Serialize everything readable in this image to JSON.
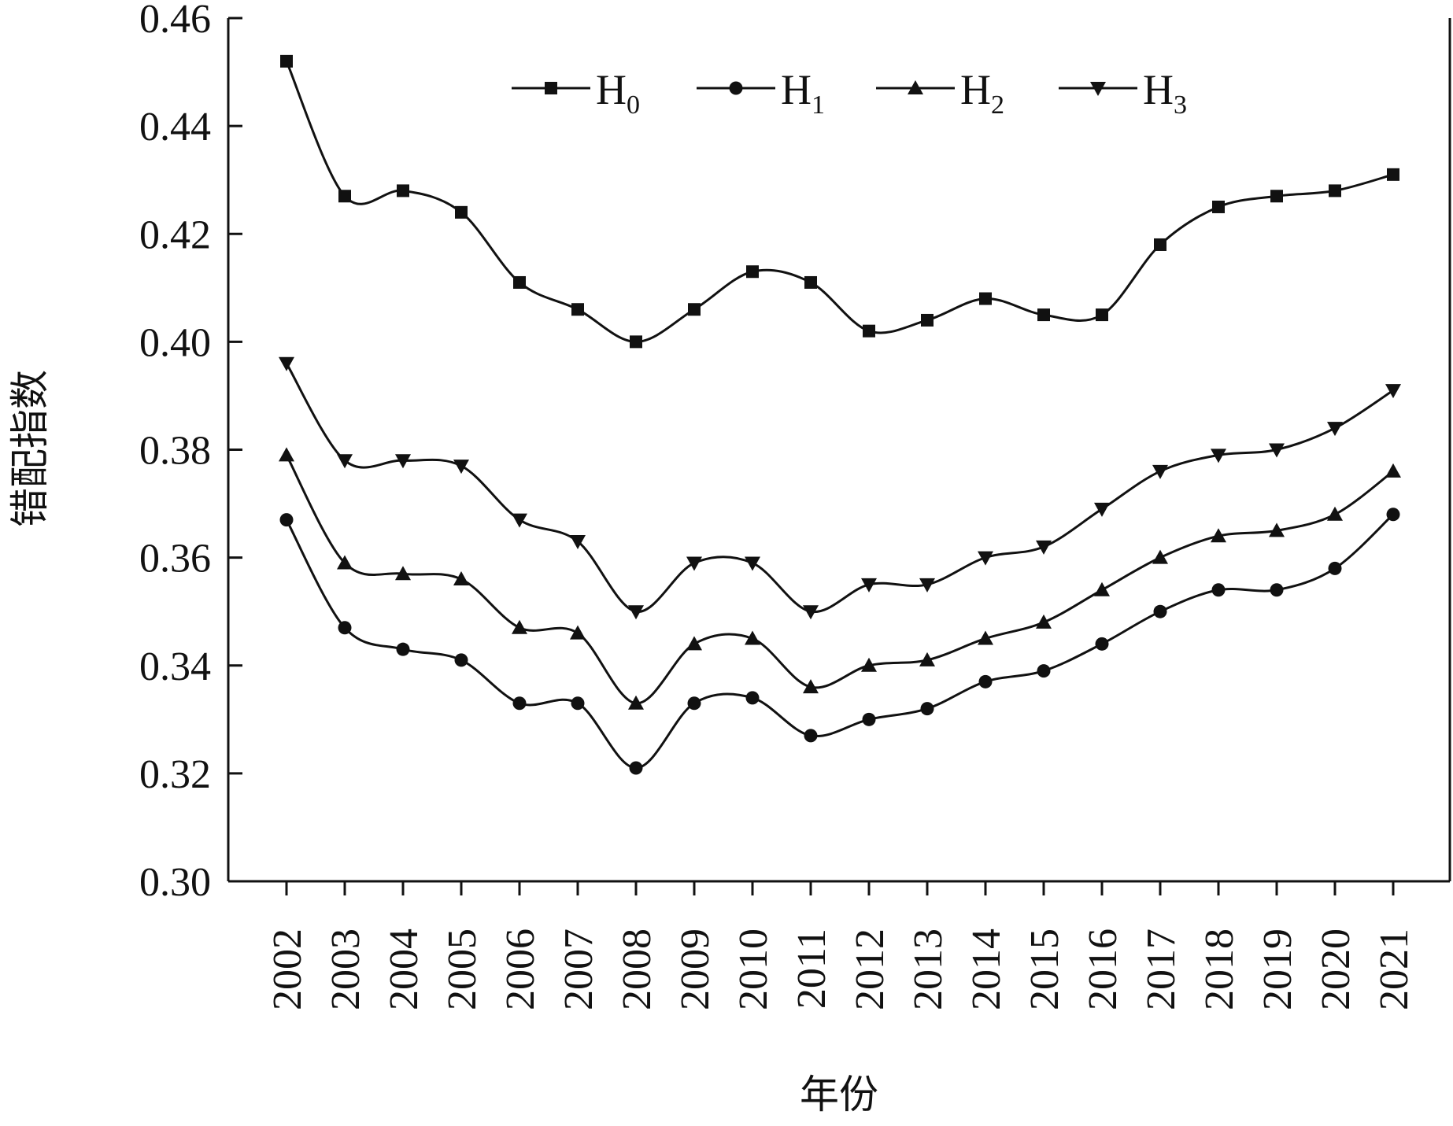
{
  "chart_data": {
    "type": "line",
    "title": "",
    "xlabel": "年份",
    "ylabel": "错配指数",
    "categories": [
      "2002",
      "2003",
      "2004",
      "2005",
      "2006",
      "2007",
      "2008",
      "2009",
      "2010",
      "2011",
      "2012",
      "2013",
      "2014",
      "2015",
      "2016",
      "2017",
      "2018",
      "2019",
      "2020",
      "2021"
    ],
    "ylim": [
      0.3,
      0.46
    ],
    "yticks": [
      "0.30",
      "0.32",
      "0.34",
      "0.36",
      "0.38",
      "0.40",
      "0.42",
      "0.44",
      "0.46"
    ],
    "grid": false,
    "legend_position": "top",
    "series": [
      {
        "name": "H",
        "subscript": "0",
        "marker": "square",
        "values": [
          0.452,
          0.427,
          0.428,
          0.424,
          0.411,
          0.406,
          0.4,
          0.406,
          0.413,
          0.411,
          0.402,
          0.404,
          0.408,
          0.405,
          0.405,
          0.418,
          0.425,
          0.427,
          0.428,
          0.431
        ]
      },
      {
        "name": "H",
        "subscript": "1",
        "marker": "circle",
        "values": [
          0.367,
          0.347,
          0.343,
          0.341,
          0.333,
          0.333,
          0.321,
          0.333,
          0.334,
          0.327,
          0.33,
          0.332,
          0.337,
          0.339,
          0.344,
          0.35,
          0.354,
          0.354,
          0.358,
          0.368
        ]
      },
      {
        "name": "H",
        "subscript": "2",
        "marker": "triangle-up",
        "values": [
          0.379,
          0.359,
          0.357,
          0.356,
          0.347,
          0.346,
          0.333,
          0.344,
          0.345,
          0.336,
          0.34,
          0.341,
          0.345,
          0.348,
          0.354,
          0.36,
          0.364,
          0.365,
          0.368,
          0.376
        ]
      },
      {
        "name": "H",
        "subscript": "3",
        "marker": "triangle-down",
        "values": [
          0.396,
          0.378,
          0.378,
          0.377,
          0.367,
          0.363,
          0.35,
          0.359,
          0.359,
          0.35,
          0.355,
          0.355,
          0.36,
          0.362,
          0.369,
          0.376,
          0.379,
          0.38,
          0.384,
          0.391
        ]
      }
    ]
  }
}
